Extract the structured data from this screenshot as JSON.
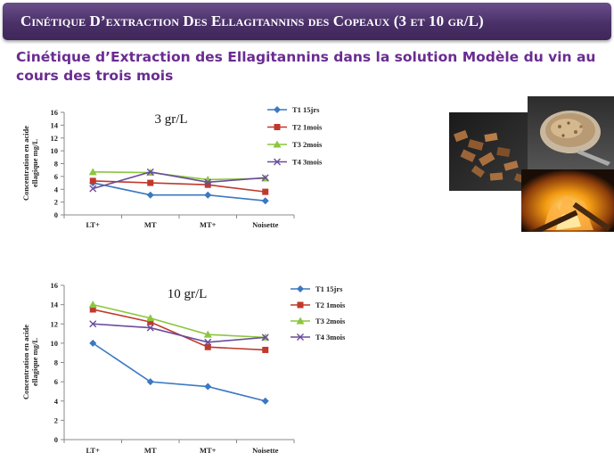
{
  "slide": {
    "title": "Cinétique D’extraction Des Ellagitannins des Copeaux (3 et 10 gr/L)",
    "subtitle": "Cinétique d’Extraction des Ellagitannins dans la solution Modèle du vin au cours des trois mois"
  },
  "colors": {
    "title_bar": "#4a3068",
    "subtitle": "#6a2c91",
    "series": [
      "#3a78c2",
      "#c0392b",
      "#8cc63f",
      "#6a4c9c"
    ]
  },
  "chart_data": [
    {
      "type": "line",
      "title": "3 gr/L",
      "ylabel": "Concentration en acide ellagique mg/L",
      "xlabel": "",
      "categories": [
        "LT+",
        "MT",
        "MT+",
        "Noisette"
      ],
      "ylim": [
        0,
        16
      ],
      "yticks": [
        0,
        2,
        4,
        6,
        8,
        10,
        12,
        14,
        16
      ],
      "legend_position": "top-right",
      "series": [
        {
          "name": "T1 15jrs",
          "marker": "diamond",
          "values": [
            5.0,
            3.1,
            3.1,
            2.2
          ]
        },
        {
          "name": "T2 1mois",
          "marker": "square",
          "values": [
            5.3,
            5.0,
            4.7,
            3.6
          ]
        },
        {
          "name": "T3 2mois",
          "marker": "triangle",
          "values": [
            6.7,
            6.6,
            5.5,
            5.7
          ]
        },
        {
          "name": "T4 3mois",
          "marker": "x",
          "values": [
            4.1,
            6.7,
            5.1,
            5.8
          ]
        }
      ]
    },
    {
      "type": "line",
      "title": "10 gr/L",
      "ylabel": "Concentration en acide ellagique mg/L",
      "xlabel": "",
      "categories": [
        "LT+",
        "MT",
        "MT+",
        "Noisette"
      ],
      "ylim": [
        0,
        16
      ],
      "yticks": [
        0,
        2,
        4,
        6,
        8,
        10,
        12,
        14,
        16
      ],
      "legend_position": "top-right",
      "series": [
        {
          "name": "T1 15jrs",
          "marker": "diamond",
          "values": [
            10.0,
            6.0,
            5.5,
            4.0
          ]
        },
        {
          "name": "T2 1mois",
          "marker": "square",
          "values": [
            13.5,
            12.2,
            9.6,
            9.3
          ]
        },
        {
          "name": "T3 2mois",
          "marker": "triangle",
          "values": [
            14.0,
            12.6,
            10.9,
            10.6
          ]
        },
        {
          "name": "T4 3mois",
          "marker": "x",
          "values": [
            12.0,
            11.6,
            10.1,
            10.6
          ]
        }
      ]
    }
  ],
  "photos": [
    {
      "name": "oak-chips-photo",
      "description_icon": "wood-chips-icon"
    },
    {
      "name": "oak-shavings-bowl-photo",
      "description_icon": "wood-shavings-icon"
    },
    {
      "name": "toasting-fire-photo",
      "description_icon": "fire-icon"
    }
  ]
}
